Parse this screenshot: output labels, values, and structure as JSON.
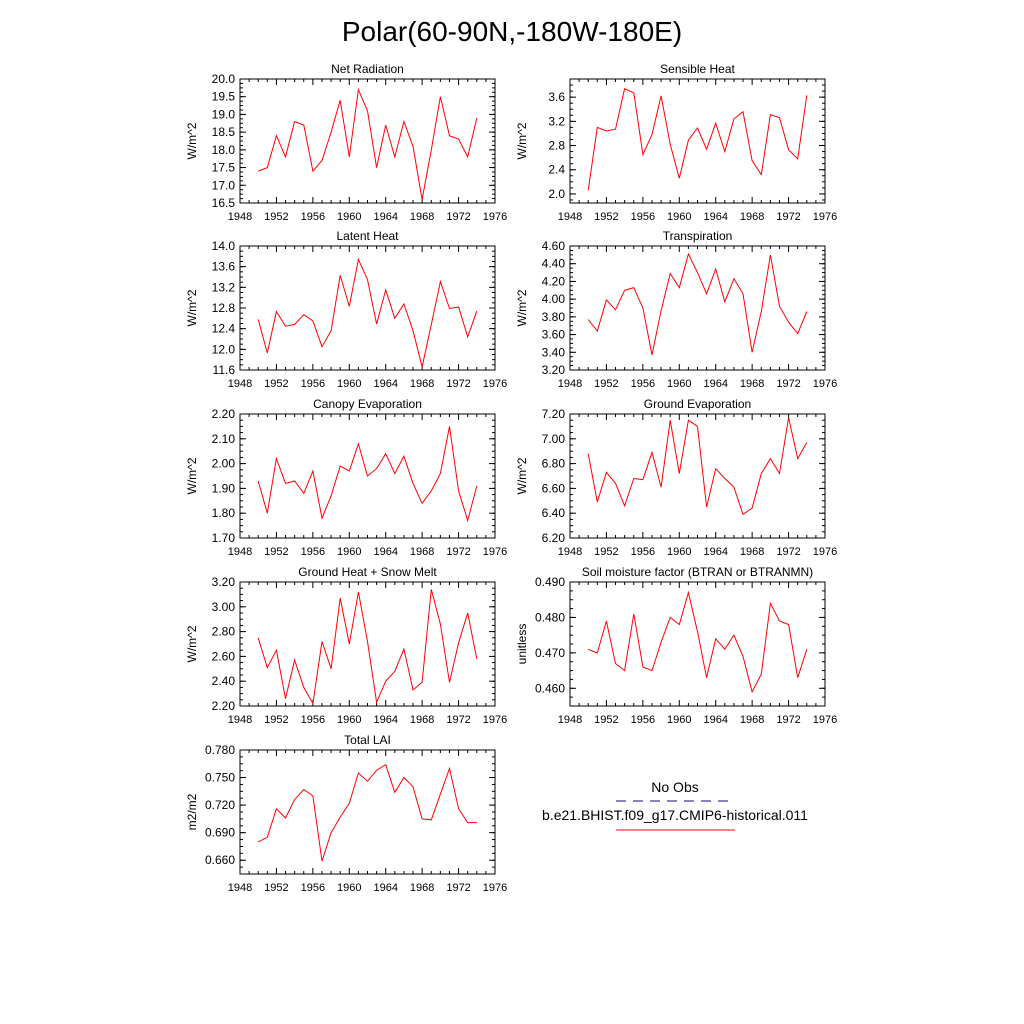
{
  "title": "Polar(60-90N,-180W-180E)",
  "legend": {
    "obs_label": "No Obs",
    "model_label": "b.e21.BHIST.f09_g17.CMIP6-historical.011",
    "obs_color": "#3b3b9e",
    "model_color": "#ff0000"
  },
  "line_color": "#ff0000",
  "chart_data": [
    {
      "type": "line",
      "title": "Net Radiation",
      "ylabel": "W/m^2",
      "xlim": [
        1948,
        1976
      ],
      "xticks": [
        "1948",
        "1952",
        "1956",
        "1960",
        "1964",
        "1968",
        "1972",
        "1976"
      ],
      "ylim": [
        16.5,
        20.0
      ],
      "yticks": [
        "16.5",
        "17.0",
        "17.5",
        "18.0",
        "18.5",
        "19.0",
        "19.5",
        "20.0"
      ],
      "x": [
        1950,
        1951,
        1952,
        1953,
        1954,
        1955,
        1956,
        1957,
        1958,
        1959,
        1960,
        1961,
        1962,
        1963,
        1964,
        1965,
        1966,
        1967,
        1968,
        1969,
        1970,
        1971,
        1972,
        1973,
        1974
      ],
      "y": [
        17.4,
        17.5,
        18.4,
        17.8,
        18.8,
        18.7,
        17.4,
        17.7,
        18.5,
        19.4,
        17.8,
        19.7,
        19.1,
        17.5,
        18.7,
        17.8,
        18.8,
        18.1,
        16.6,
        18.0,
        19.5,
        18.4,
        18.3,
        17.8,
        18.9
      ]
    },
    {
      "type": "line",
      "title": "Sensible Heat",
      "ylabel": "W/m^2",
      "xlim": [
        1948,
        1976
      ],
      "xticks": [
        "1948",
        "1952",
        "1956",
        "1960",
        "1964",
        "1968",
        "1972",
        "1976"
      ],
      "ylim": [
        1.85,
        3.9
      ],
      "yticks": [
        "2.0",
        "2.4",
        "2.8",
        "3.2",
        "3.6"
      ],
      "x": [
        1950,
        1951,
        1952,
        1953,
        1954,
        1955,
        1956,
        1957,
        1958,
        1959,
        1960,
        1961,
        1962,
        1963,
        1964,
        1965,
        1966,
        1967,
        1968,
        1969,
        1970,
        1971,
        1972,
        1973,
        1974
      ],
      "y": [
        2.06,
        3.1,
        3.04,
        3.07,
        3.74,
        3.67,
        2.65,
        2.98,
        3.62,
        2.82,
        2.26,
        2.89,
        3.09,
        2.74,
        3.17,
        2.7,
        3.24,
        3.36,
        2.55,
        2.32,
        3.31,
        3.26,
        2.73,
        2.58,
        3.63
      ]
    },
    {
      "type": "line",
      "title": "Latent Heat",
      "ylabel": "W/m^2",
      "xlim": [
        1948,
        1976
      ],
      "xticks": [
        "1948",
        "1952",
        "1956",
        "1960",
        "1964",
        "1968",
        "1972",
        "1976"
      ],
      "ylim": [
        11.6,
        14.0
      ],
      "yticks": [
        "11.6",
        "12.0",
        "12.4",
        "12.8",
        "13.2",
        "13.6",
        "14.0"
      ],
      "x": [
        1950,
        1951,
        1952,
        1953,
        1954,
        1955,
        1956,
        1957,
        1958,
        1959,
        1960,
        1961,
        1962,
        1963,
        1964,
        1965,
        1966,
        1967,
        1968,
        1969,
        1970,
        1971,
        1972,
        1973,
        1974
      ],
      "y": [
        12.58,
        11.93,
        12.73,
        12.45,
        12.48,
        12.67,
        12.55,
        12.05,
        12.36,
        13.43,
        12.83,
        13.74,
        13.35,
        12.49,
        13.15,
        12.6,
        12.88,
        12.36,
        11.66,
        12.48,
        13.31,
        12.79,
        12.82,
        12.24,
        12.74
      ]
    },
    {
      "type": "line",
      "title": "Transpiration",
      "ylabel": "W/m^2",
      "xlim": [
        1948,
        1976
      ],
      "xticks": [
        "1948",
        "1952",
        "1956",
        "1960",
        "1964",
        "1968",
        "1972",
        "1976"
      ],
      "ylim": [
        3.2,
        4.6
      ],
      "yticks": [
        "3.20",
        "3.40",
        "3.60",
        "3.80",
        "4.00",
        "4.20",
        "4.40",
        "4.60"
      ],
      "x": [
        1950,
        1951,
        1952,
        1953,
        1954,
        1955,
        1956,
        1957,
        1958,
        1959,
        1960,
        1961,
        1962,
        1963,
        1964,
        1965,
        1966,
        1967,
        1968,
        1969,
        1970,
        1971,
        1972,
        1973,
        1974
      ],
      "y": [
        3.77,
        3.64,
        3.99,
        3.88,
        4.1,
        4.13,
        3.9,
        3.37,
        3.87,
        4.29,
        4.13,
        4.51,
        4.3,
        4.06,
        4.34,
        3.97,
        4.23,
        4.06,
        3.4,
        3.86,
        4.5,
        3.92,
        3.74,
        3.61,
        3.86
      ]
    },
    {
      "type": "line",
      "title": "Canopy Evaporation",
      "ylabel": "W/m^2",
      "xlim": [
        1948,
        1976
      ],
      "xticks": [
        "1948",
        "1952",
        "1956",
        "1960",
        "1964",
        "1968",
        "1972",
        "1976"
      ],
      "ylim": [
        1.7,
        2.2
      ],
      "yticks": [
        "1.70",
        "1.80",
        "1.90",
        "2.00",
        "2.10",
        "2.20"
      ],
      "x": [
        1950,
        1951,
        1952,
        1953,
        1954,
        1955,
        1956,
        1957,
        1958,
        1959,
        1960,
        1961,
        1962,
        1963,
        1964,
        1965,
        1966,
        1967,
        1968,
        1969,
        1970,
        1971,
        1972,
        1973,
        1974
      ],
      "y": [
        1.93,
        1.8,
        2.02,
        1.92,
        1.93,
        1.88,
        1.97,
        1.78,
        1.87,
        1.99,
        1.97,
        2.08,
        1.95,
        1.98,
        2.04,
        1.96,
        2.03,
        1.92,
        1.84,
        1.89,
        1.96,
        2.15,
        1.89,
        1.77,
        1.91
      ]
    },
    {
      "type": "line",
      "title": "Ground Evaporation",
      "ylabel": "W/m^2",
      "xlim": [
        1948,
        1976
      ],
      "xticks": [
        "1948",
        "1952",
        "1956",
        "1960",
        "1964",
        "1968",
        "1972",
        "1976"
      ],
      "ylim": [
        6.2,
        7.2
      ],
      "yticks": [
        "6.20",
        "6.40",
        "6.60",
        "6.80",
        "7.00",
        "7.20"
      ],
      "x": [
        1950,
        1951,
        1952,
        1953,
        1954,
        1955,
        1956,
        1957,
        1958,
        1959,
        1960,
        1961,
        1962,
        1963,
        1964,
        1965,
        1966,
        1967,
        1968,
        1969,
        1970,
        1971,
        1972,
        1973,
        1974
      ],
      "y": [
        6.88,
        6.49,
        6.73,
        6.64,
        6.46,
        6.68,
        6.67,
        6.89,
        6.61,
        7.15,
        6.72,
        7.15,
        7.1,
        6.45,
        6.76,
        6.68,
        6.61,
        6.39,
        6.44,
        6.72,
        6.84,
        6.72,
        7.17,
        6.84,
        6.97
      ]
    },
    {
      "type": "line",
      "title": "Ground Heat + Snow Melt",
      "ylabel": "W/m^2",
      "xlim": [
        1948,
        1976
      ],
      "xticks": [
        "1948",
        "1952",
        "1956",
        "1960",
        "1964",
        "1968",
        "1972",
        "1976"
      ],
      "ylim": [
        2.2,
        3.2
      ],
      "yticks": [
        "2.20",
        "2.40",
        "2.60",
        "2.80",
        "3.00",
        "3.20"
      ],
      "x": [
        1950,
        1951,
        1952,
        1953,
        1954,
        1955,
        1956,
        1957,
        1958,
        1959,
        1960,
        1961,
        1962,
        1963,
        1964,
        1965,
        1966,
        1967,
        1968,
        1969,
        1970,
        1971,
        1972,
        1973,
        1974
      ],
      "y": [
        2.75,
        2.51,
        2.65,
        2.26,
        2.57,
        2.35,
        2.22,
        2.72,
        2.5,
        3.07,
        2.7,
        3.12,
        2.72,
        2.23,
        2.4,
        2.48,
        2.66,
        2.33,
        2.39,
        3.14,
        2.86,
        2.39,
        2.71,
        2.95,
        2.58
      ]
    },
    {
      "type": "line",
      "title": "Soil moisture factor (BTRAN or BTRANMN)",
      "ylabel": "unitless",
      "xlim": [
        1948,
        1976
      ],
      "xticks": [
        "1948",
        "1952",
        "1956",
        "1960",
        "1964",
        "1968",
        "1972",
        "1976"
      ],
      "ylim": [
        0.455,
        0.49
      ],
      "yticks": [
        "0.460",
        "0.470",
        "0.480",
        "0.490"
      ],
      "x": [
        1950,
        1951,
        1952,
        1953,
        1954,
        1955,
        1956,
        1957,
        1958,
        1959,
        1960,
        1961,
        1962,
        1963,
        1964,
        1965,
        1966,
        1967,
        1968,
        1969,
        1970,
        1971,
        1972,
        1973,
        1974
      ],
      "y": [
        0.471,
        0.47,
        0.479,
        0.467,
        0.465,
        0.481,
        0.466,
        0.465,
        0.473,
        0.48,
        0.478,
        0.487,
        0.476,
        0.463,
        0.474,
        0.471,
        0.475,
        0.469,
        0.459,
        0.464,
        0.484,
        0.479,
        0.478,
        0.463,
        0.471
      ]
    },
    {
      "type": "line",
      "title": "Total LAI",
      "ylabel": "m2/m2",
      "xlim": [
        1948,
        1976
      ],
      "xticks": [
        "1948",
        "1952",
        "1956",
        "1960",
        "1964",
        "1968",
        "1972",
        "1976"
      ],
      "ylim": [
        0.645,
        0.78
      ],
      "yticks": [
        "0.660",
        "0.690",
        "0.720",
        "0.750",
        "0.780"
      ],
      "x": [
        1950,
        1951,
        1952,
        1953,
        1954,
        1955,
        1956,
        1957,
        1958,
        1959,
        1960,
        1961,
        1962,
        1963,
        1964,
        1965,
        1966,
        1967,
        1968,
        1969,
        1970,
        1971,
        1972,
        1973,
        1974
      ],
      "y": [
        0.68,
        0.685,
        0.716,
        0.706,
        0.726,
        0.737,
        0.73,
        0.659,
        0.69,
        0.707,
        0.722,
        0.755,
        0.746,
        0.758,
        0.764,
        0.734,
        0.75,
        0.74,
        0.705,
        0.704,
        0.732,
        0.76,
        0.716,
        0.701,
        0.701
      ]
    }
  ]
}
